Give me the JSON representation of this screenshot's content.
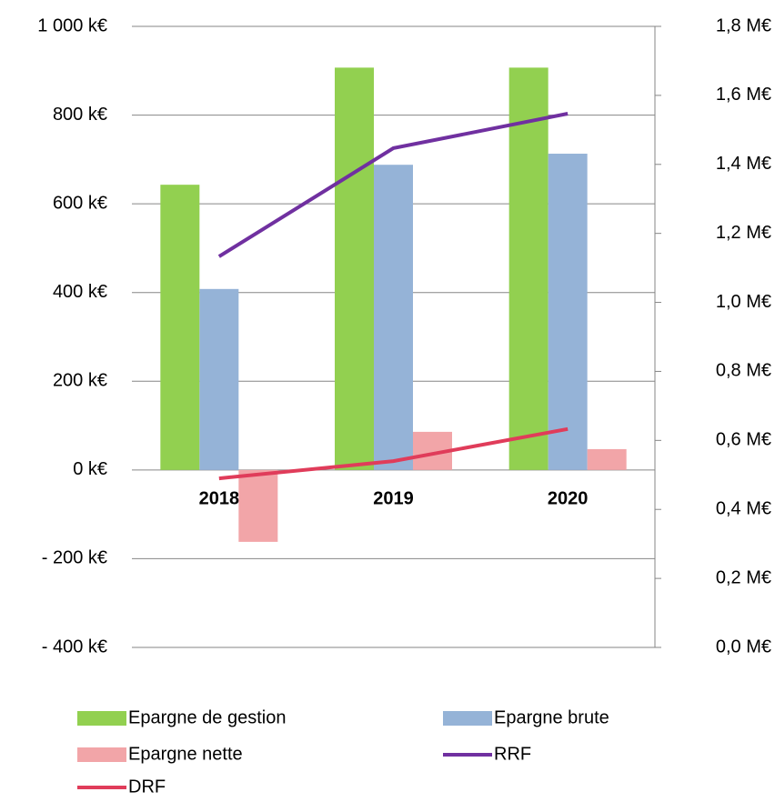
{
  "chart_data": {
    "type": "bar",
    "categories": [
      "2018",
      "2019",
      "2020"
    ],
    "series": [
      {
        "name": "Epargne de gestion",
        "color": "#92d050",
        "type": "bar",
        "values": [
          643,
          907,
          907
        ]
      },
      {
        "name": "Epargne brute",
        "color": "#95b3d7",
        "type": "bar",
        "values": [
          408,
          688,
          713
        ]
      },
      {
        "name": "Epargne nette",
        "color": "#f2a5a8",
        "type": "bar",
        "values": [
          -162,
          86,
          47
        ]
      },
      {
        "name": "RRF",
        "color": "#7030a0",
        "type": "line",
        "axis": "y2",
        "values": [
          1.133,
          1.447,
          1.547
        ]
      },
      {
        "name": "DRF",
        "color": "#e03c5a",
        "type": "line",
        "axis": "y2",
        "values": [
          0.49,
          0.54,
          0.633
        ]
      }
    ],
    "ylim": [
      -400,
      1000
    ],
    "yticks": [
      {
        "value": -400,
        "label": "-  400 k€"
      },
      {
        "value": -200,
        "label": "-  200 k€"
      },
      {
        "value": 0,
        "label": "0 k€"
      },
      {
        "value": 200,
        "label": "200 k€"
      },
      {
        "value": 400,
        "label": "400 k€"
      },
      {
        "value": 600,
        "label": "600 k€"
      },
      {
        "value": 800,
        "label": "800 k€"
      },
      {
        "value": 1000,
        "label": "1 000 k€"
      }
    ],
    "y2lim": [
      0,
      1.8
    ],
    "y2ticks": [
      {
        "value": 0,
        "label": "0,0 M€"
      },
      {
        "value": 0.2,
        "label": "0,2 M€"
      },
      {
        "value": 0.4,
        "label": "0,4 M€"
      },
      {
        "value": 0.6,
        "label": "0,6 M€"
      },
      {
        "value": 0.8,
        "label": "0,8 M€"
      },
      {
        "value": 1.0,
        "label": "1,0 M€"
      },
      {
        "value": 1.2,
        "label": "1,2 M€"
      },
      {
        "value": 1.4,
        "label": "1,4 M€"
      },
      {
        "value": 1.6,
        "label": "1,6 M€"
      },
      {
        "value": 1.8,
        "label": "1,8 M€"
      }
    ],
    "grid": true,
    "legend": "bottom"
  }
}
